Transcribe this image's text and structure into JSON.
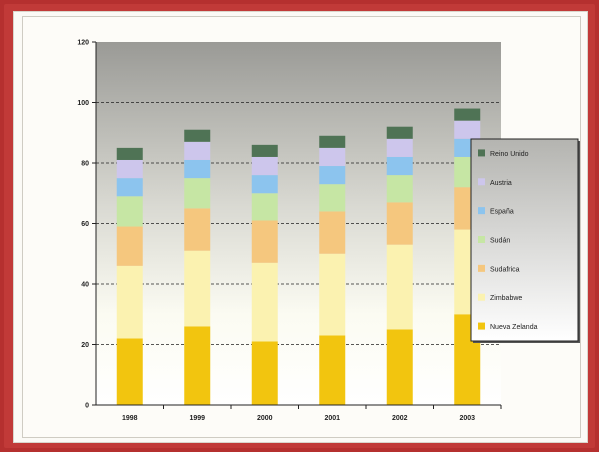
{
  "chart_data": {
    "type": "bar",
    "stacked": true,
    "title": "",
    "xlabel": "",
    "ylabel": "",
    "ylim": [
      0,
      120
    ],
    "yticks": [
      0,
      20,
      40,
      60,
      80,
      100,
      120
    ],
    "grid": "dashed horizontal",
    "legend_position": "right",
    "categories": [
      "1998",
      "1999",
      "2000",
      "2001",
      "2002",
      "2003"
    ],
    "series": [
      {
        "name": "Nueva Zelanda",
        "color": "#f2c50f",
        "values": [
          22,
          26,
          21,
          23,
          25,
          30
        ]
      },
      {
        "name": "Zimbabwe",
        "color": "#fbf2b0",
        "values": [
          24,
          25,
          26,
          27,
          28,
          28
        ]
      },
      {
        "name": "Sudafrica",
        "color": "#f5c77e",
        "values": [
          13,
          14,
          14,
          14,
          14,
          14
        ]
      },
      {
        "name": "Sudán",
        "color": "#c6e6a4",
        "values": [
          10,
          10,
          9,
          9,
          9,
          10
        ]
      },
      {
        "name": "España",
        "color": "#8cc4ee",
        "values": [
          6,
          6,
          6,
          6,
          6,
          6
        ]
      },
      {
        "name": "Austria",
        "color": "#cdc6ec",
        "values": [
          6,
          6,
          6,
          6,
          6,
          6
        ]
      },
      {
        "name": "Reino Unido",
        "color": "#4f7355",
        "values": [
          4,
          4,
          4,
          4,
          4,
          4
        ]
      }
    ]
  }
}
